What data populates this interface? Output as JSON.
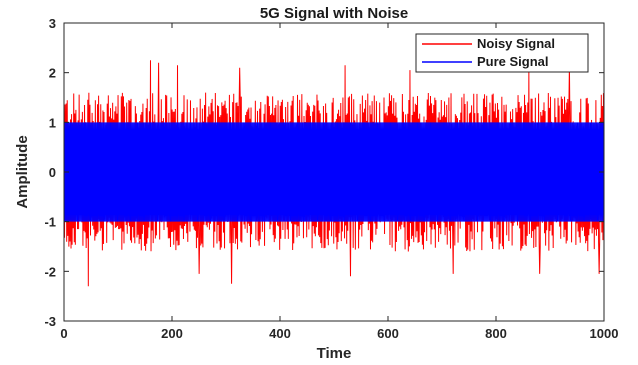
{
  "chart_data": {
    "type": "line",
    "title": "5G Signal with Noise",
    "xlabel": "Time",
    "ylabel": "Amplitude",
    "xlim": [
      0,
      1000
    ],
    "ylim": [
      -3,
      3
    ],
    "x_ticks": [
      0,
      200,
      400,
      600,
      800,
      1000
    ],
    "y_ticks": [
      3,
      2,
      1,
      0,
      -1,
      -2,
      -3
    ],
    "grid": false,
    "legend_position": "top-right",
    "series": [
      {
        "name": "Noisy Signal",
        "color": "#ff0000",
        "x_range": [
          0,
          1000
        ],
        "samples": 1000,
        "typical_envelope": [
          -1.6,
          1.6
        ],
        "peaks": [
          {
            "x": 45,
            "y": -2.3
          },
          {
            "x": 160,
            "y": 2.25
          },
          {
            "x": 175,
            "y": 2.2
          },
          {
            "x": 210,
            "y": 2.15
          },
          {
            "x": 250,
            "y": -2.05
          },
          {
            "x": 310,
            "y": -2.25
          },
          {
            "x": 325,
            "y": 2.1
          },
          {
            "x": 520,
            "y": 2.15
          },
          {
            "x": 530,
            "y": -2.1
          },
          {
            "x": 640,
            "y": 2.05
          },
          {
            "x": 720,
            "y": -2.05
          },
          {
            "x": 860,
            "y": 2.05
          },
          {
            "x": 880,
            "y": -2.05
          },
          {
            "x": 935,
            "y": 2.15
          },
          {
            "x": 990,
            "y": -2.05
          }
        ]
      },
      {
        "name": "Pure Signal",
        "color": "#0000ff",
        "x_range": [
          0,
          1000
        ],
        "samples": 1000,
        "amplitude": 1.0
      }
    ]
  }
}
